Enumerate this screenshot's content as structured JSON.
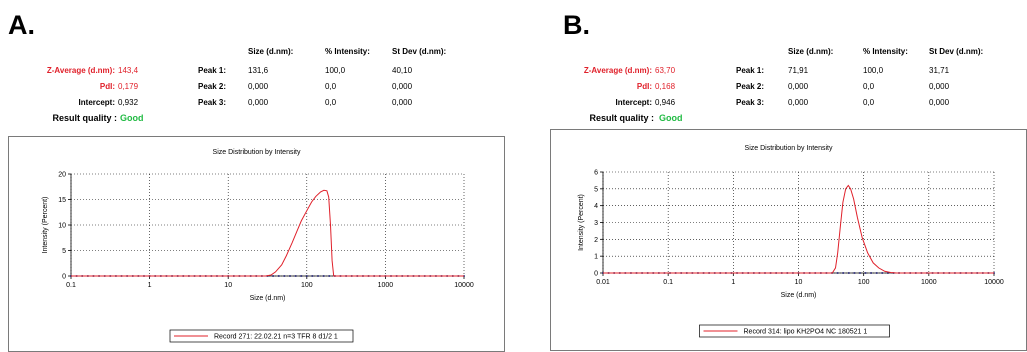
{
  "table_headers": [
    "Size (d.nm):",
    "% Intensity:",
    "St Dev (d.nm):"
  ],
  "panels": [
    {
      "label": "A.",
      "z_average_label": "Z-Average (d.nm):",
      "z_average": "143,4",
      "pdi_label": "PdI:",
      "pdi": "0,179",
      "intercept_label": "Intercept:",
      "intercept": "0,932",
      "quality_label": "Result quality :",
      "quality": "Good",
      "peaks": [
        {
          "label": "Peak 1:",
          "size": "131,6",
          "intensity": "100,0",
          "stdev": "40,10"
        },
        {
          "label": "Peak 2:",
          "size": "0,000",
          "intensity": "0,0",
          "stdev": "0,000"
        },
        {
          "label": "Peak 3:",
          "size": "0,000",
          "intensity": "0,0",
          "stdev": "0,000"
        }
      ]
    },
    {
      "label": "B.",
      "z_average_label": "Z-Average (d.nm):",
      "z_average": "63,70",
      "pdi_label": "PdI:",
      "pdi": "0,168",
      "intercept_label": "Intercept:",
      "intercept": "0,946",
      "quality_label": "Result quality :",
      "quality": "Good",
      "peaks": [
        {
          "label": "Peak 1:",
          "size": "71,91",
          "intensity": "100,0",
          "stdev": "31,71"
        },
        {
          "label": "Peak 2:",
          "size": "0,000",
          "intensity": "0,0",
          "stdev": "0,000"
        },
        {
          "label": "Peak 3:",
          "size": "0,000",
          "intensity": "0,0",
          "stdev": "0,000"
        }
      ]
    }
  ],
  "colors": {
    "series": "#e0202a",
    "marker": "#1a1a6e",
    "good": "#22bb44"
  },
  "chart_data": [
    {
      "type": "line",
      "title": "Size Distribution by Intensity",
      "xlabel": "Size (d.nm)",
      "ylabel": "Intensity (Percent)",
      "xscale": "log",
      "xlim": [
        0.1,
        10000
      ],
      "ylim": [
        0,
        20
      ],
      "xticks": [
        0.1,
        1,
        10,
        100,
        1000,
        10000
      ],
      "xtick_labels": [
        "0.1",
        "1",
        "10",
        "100",
        "1000",
        "10000"
      ],
      "yticks": [
        0,
        5,
        10,
        15,
        20
      ],
      "ytick_labels": [
        "0",
        "5",
        "10",
        "15",
        "20"
      ],
      "grid": true,
      "legend_position": "bottom-center",
      "series": [
        {
          "name": "Record 271: 22.02.21 n=3  TFR 8 d1/2 1",
          "x": [
            0.1,
            30,
            35,
            40,
            48,
            55,
            65,
            75,
            85,
            100,
            115,
            130,
            150,
            165,
            180,
            190,
            200,
            210,
            220,
            10000
          ],
          "y": [
            0,
            0,
            0.2,
            0.8,
            2.2,
            4,
            6.5,
            8.8,
            10.8,
            12.8,
            14.5,
            15.6,
            16.5,
            16.8,
            16.7,
            15.5,
            10,
            3,
            0,
            0
          ]
        }
      ]
    },
    {
      "type": "line",
      "title": "Size Distribution by Intensity",
      "xlabel": "Size (d.nm)",
      "ylabel": "Intensity (Percent)",
      "xscale": "log",
      "xlim": [
        0.01,
        10000
      ],
      "ylim": [
        0,
        6
      ],
      "xticks": [
        0.01,
        0.1,
        1,
        10,
        100,
        1000,
        10000
      ],
      "xtick_labels": [
        "0.01",
        "0.1",
        "1",
        "10",
        "100",
        "1000",
        "10000"
      ],
      "yticks": [
        0,
        1,
        2,
        3,
        4,
        5,
        6
      ],
      "ytick_labels": [
        "0",
        "1",
        "2",
        "3",
        "4",
        "5",
        "6"
      ],
      "grid": true,
      "legend_position": "bottom-center",
      "series": [
        {
          "name": "Record 314: lipo KH2PO4 NC 180521 1",
          "x": [
            0.01,
            33,
            37,
            40,
            44,
            48,
            53,
            58,
            63,
            70,
            80,
            95,
            115,
            140,
            170,
            210,
            260,
            320,
            10000
          ],
          "y": [
            0,
            0,
            0.3,
            1.2,
            2.8,
            4.2,
            5.0,
            5.2,
            5.0,
            4.4,
            3.3,
            2.1,
            1.2,
            0.6,
            0.3,
            0.1,
            0.03,
            0,
            0
          ]
        }
      ]
    }
  ]
}
